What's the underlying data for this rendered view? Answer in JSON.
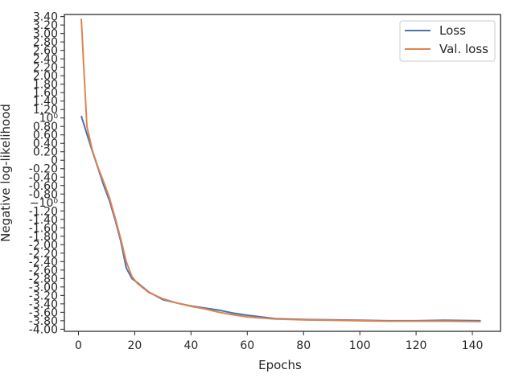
{
  "chart_data": {
    "type": "line",
    "xlabel": "Epochs",
    "ylabel": "Negative log-likelihood",
    "xlim": [
      -5,
      150
    ],
    "x_ticks": [
      0,
      20,
      40,
      60,
      80,
      100,
      120,
      140
    ],
    "y_tick_labels": [
      "3.40",
      "3.20",
      "3.00",
      "2.80",
      "2.60",
      "2.40",
      "2.20",
      "2.00",
      "1.80",
      "1.60",
      "1.40",
      "1.20",
      "10⁰",
      "0.80",
      "0.60",
      "0.40",
      "0.20",
      "0",
      "-0.20",
      "-0.40",
      "-0.60",
      "-0.80",
      "−10⁰",
      "-1.20",
      "-1.40",
      "-1.60",
      "-1.80",
      "-2.00",
      "-2.20",
      "-2.40",
      "-2.60",
      "-2.80",
      "-3.00",
      "-3.20",
      "-3.40",
      "-3.60",
      "-3.80",
      "-4.00"
    ],
    "y_tick_values": [
      3.4,
      3.2,
      3.0,
      2.8,
      2.6,
      2.4,
      2.2,
      2.0,
      1.8,
      1.6,
      1.4,
      1.2,
      1.0,
      0.8,
      0.6,
      0.4,
      0.2,
      0,
      -0.2,
      -0.4,
      -0.6,
      -0.8,
      -1.0,
      -1.2,
      -1.4,
      -1.6,
      -1.8,
      -2.0,
      -2.2,
      -2.4,
      -2.6,
      -2.8,
      -3.0,
      -3.2,
      -3.4,
      -3.6,
      -3.8,
      -4.0
    ],
    "ylim": [
      -4.05,
      3.45
    ],
    "grid": false,
    "legend_position": "top-right",
    "series": [
      {
        "name": "Loss",
        "color": "#4c72b0",
        "x": [
          1,
          3,
          5,
          7,
          9,
          11,
          13,
          15,
          17,
          19,
          21,
          25,
          30,
          35,
          40,
          45,
          50,
          55,
          60,
          70,
          80,
          90,
          100,
          110,
          120,
          130,
          143
        ],
        "y": [
          1.05,
          0.62,
          0.2,
          -0.2,
          -0.6,
          -0.95,
          -1.4,
          -1.9,
          -2.55,
          -2.8,
          -2.9,
          -3.12,
          -3.3,
          -3.38,
          -3.45,
          -3.5,
          -3.55,
          -3.62,
          -3.67,
          -3.75,
          -3.77,
          -3.78,
          -3.79,
          -3.8,
          -3.8,
          -3.79,
          -3.8
        ]
      },
      {
        "name": "Val. loss",
        "color": "#dd8452",
        "x": [
          1,
          3,
          5,
          7,
          9,
          11,
          13,
          15,
          17,
          19,
          21,
          25,
          30,
          35,
          40,
          45,
          50,
          55,
          60,
          70,
          80,
          90,
          100,
          110,
          120,
          130,
          143
        ],
        "y": [
          3.35,
          0.8,
          0.22,
          -0.18,
          -0.52,
          -0.88,
          -1.35,
          -1.85,
          -2.4,
          -2.75,
          -2.92,
          -3.13,
          -3.28,
          -3.38,
          -3.46,
          -3.52,
          -3.6,
          -3.66,
          -3.71,
          -3.76,
          -3.78,
          -3.79,
          -3.8,
          -3.81,
          -3.81,
          -3.81,
          -3.82
        ]
      }
    ]
  }
}
